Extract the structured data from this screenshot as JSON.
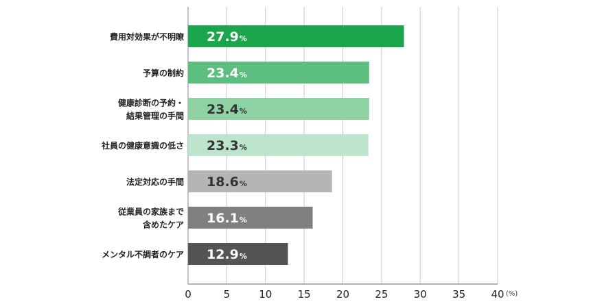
{
  "chart_data": {
    "type": "bar",
    "orientation": "horizontal",
    "categories": [
      [
        "費用対効果が不明瞭"
      ],
      [
        "予算の制約"
      ],
      [
        "健康診断の予約・",
        "結果管理の手間"
      ],
      [
        "社員の健康意識の低さ"
      ],
      [
        "法定対応の手間"
      ],
      [
        "従業員の家族まで",
        "含めたケア"
      ],
      [
        "メンタル不調者のケア"
      ]
    ],
    "values": [
      27.9,
      23.4,
      23.4,
      23.3,
      18.6,
      16.1,
      12.9
    ],
    "value_suffix": "%",
    "unit": "(%)",
    "xlim": [
      0,
      40
    ],
    "xticks": [
      0,
      5,
      10,
      15,
      20,
      25,
      30,
      35,
      40
    ],
    "grid": true,
    "colors": [
      "#1ca64c",
      "#5cbf80",
      "#8fd2a4",
      "#bde4cc",
      "#b5b5b5",
      "#808080",
      "#545454"
    ],
    "label_text_colors": [
      "#ffffff",
      "#ffffff",
      "#333333",
      "#333333",
      "#333333",
      "#ffffff",
      "#ffffff"
    ],
    "label_outline_colors": [
      "#1ca64c",
      "#5cbf80",
      "#8fd2a4",
      "#bde4cc",
      "#b5b5b5",
      "#808080",
      "#545454"
    ]
  }
}
